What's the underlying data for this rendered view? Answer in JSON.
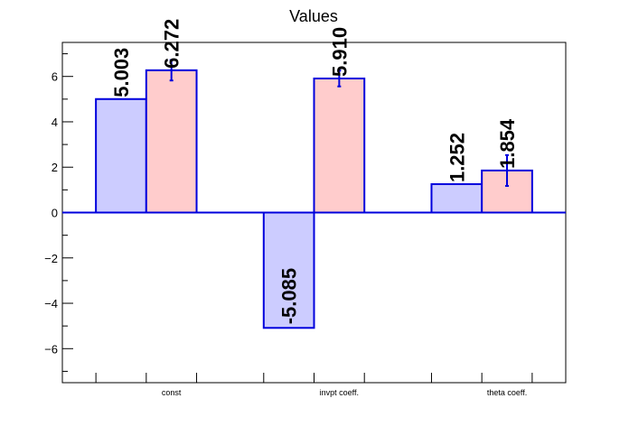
{
  "chart_data": {
    "type": "bar",
    "title": "Values",
    "xlabel": "",
    "ylabel": "",
    "categories": [
      "const",
      "invpt coeff.",
      "theta coeff."
    ],
    "ylim": [
      -7.5,
      7.5
    ],
    "yticks": [
      -6,
      -4,
      -2,
      0,
      2,
      4,
      6
    ],
    "ytick_labels": [
      "−6",
      "−4",
      "−2",
      "0",
      "2",
      "4",
      "6"
    ],
    "grid": false,
    "series": [
      {
        "values": [
          5.003,
          -5.085,
          1.252
        ],
        "labels": [
          "5.003",
          "-5.085",
          "1.252"
        ],
        "errors": [
          null,
          null,
          null
        ],
        "fill": "#ccccff",
        "stroke": "#0000dd"
      },
      {
        "values": [
          6.272,
          5.91,
          1.854
        ],
        "labels": [
          "6.272",
          "5.910",
          "1.854"
        ],
        "errors": [
          0.45,
          0.35,
          0.68
        ],
        "fill": "#ffcccc",
        "stroke": "#0000dd"
      }
    ]
  }
}
